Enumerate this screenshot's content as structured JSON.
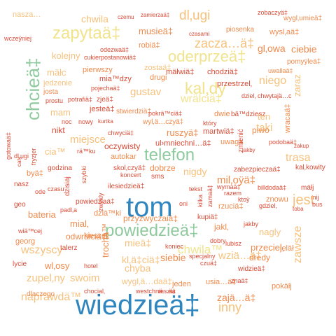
{
  "colors": {
    "background": "#ffffff",
    "blue": "#2f86bf",
    "teal": "#3fa3b2",
    "green": "#8fca9e",
    "yellow": "#f0e38c",
    "peach": "#f6c17c",
    "orange": "#ef8a4c",
    "red": "#d94b36"
  },
  "words": [
    "tom",
    "wiedzieä‡",
    "telefon",
    "powiedzieä‡",
    "zapytaä‡",
    "oderprzeä‡",
    "chcieä‡",
    "zacza…ä‡",
    "dl‚ugi",
    "musieä‡",
    "chwila",
    "nasza…",
    "czemu",
    "zamierzaä‡",
    "zobaczyä‡",
    "wygl‚umieä‡",
    "wczeÿniej",
    "czasami",
    "piosenka",
    "wysl‚aä‡",
    "gl‚owa",
    "ciebie",
    "robiä‡",
    "odezwaä‡",
    "kolejny",
    "cukierpostanowiä‡",
    "zostaä‡",
    "pomyÿleä‡",
    "mäłc",
    "pierwszy",
    "mäłwiä‡",
    "chodziä‡",
    "uwallaä‡",
    "jedzenie",
    "mia™dzy",
    "drugi",
    "kal‚dy",
    "niego",
    "przestrzel‚",
    "josta",
    "pojechaä‡",
    "dziel‚ chwytajä…c",
    "prostu",
    "potrafiä‡",
    "zjeä‡",
    "gustav",
    "wrälciä‡",
    "mam",
    "jesteä‡",
    "stwierdziä‡",
    "pokrä™ciä‡",
    "dwie",
    "bä™dziesz",
    "ten",
    "zaraz",
    "taki",
    "noc",
    "nowy",
    "kurtka",
    "wyl‚ä…czyä‡",
    "który",
    "ruszyä‡",
    "martwiä‡",
    "uwaga",
    "piwo",
    "wracaä‡",
    "nikt",
    "chwyciä‡",
    "miejsce",
    "zmienić",
    "podobaä‡",
    "cia™",
    "oczywisty",
    "ul›mniechni…ä‡",
    "zakup",
    "fryzjer",
    "rä™ku",
    "autokar",
    "jakby",
    "gotowaä‡",
    "dl‚ugi",
    "dobrze",
    "nigdy",
    "mil‚oÿä‡",
    "trasa",
    "caly",
    "skol‚czyä‡",
    "zabezpieczaä‡",
    "kal‚kowity",
    "godzina",
    "koncert",
    "sms",
    "wymaä‡",
    "razem",
    "byä‡",
    "nasz",
    "dzisiaj",
    "szybki",
    "ode",
    "czasu",
    "billdodaä‡",
    "mäłj",
    "mĳ",
    "ilesiedzieä‡",
    "tekst",
    "zwykly",
    "ktoÿ",
    "znowu",
    "jest",
    "geo",
    "powiedziaä‡",
    "kilka",
    "zamaä‡",
    "toba",
    "bus",
    "bateria",
    "dziä™ki",
    "rzuciä‡",
    "gdziel‚",
    "padl‚a",
    "przyzwyczaiä‡",
    "oni",
    "kupiä‡",
    "wiä™cej",
    "mial‚",
    "jakl‚",
    "jakby",
    "zawsze",
    "odwräłciä‡",
    "trocha™",
    "kieszel‚",
    "nagly",
    "georg",
    "wszyscy",
    "mieä‡",
    "wziä…ä‡",
    "dobry",
    "lubisz",
    "talerz",
    "chwila™",
    "koniec",
    "specjalny",
    "przeciel‚",
    "jeläł",
    "lycie",
    "wl‚osy",
    "kl‚ä‡ciä‡",
    "siebie",
    "dredy",
    "czuä‡",
    "hotel",
    "zupel‚ny",
    "swoim",
    "chyba",
    "widzieä‡",
    "wygl‚ä…daä‡",
    "usia…ä‡",
    "znaä‡",
    "zajä…ä‡",
    "naprawdä™",
    "jeden",
    "pokäłj",
    "chocial‚",
    "westchnä…ä‡",
    "reszta",
    "inny",
    "dlaczego",
    "sesja"
  ]
}
